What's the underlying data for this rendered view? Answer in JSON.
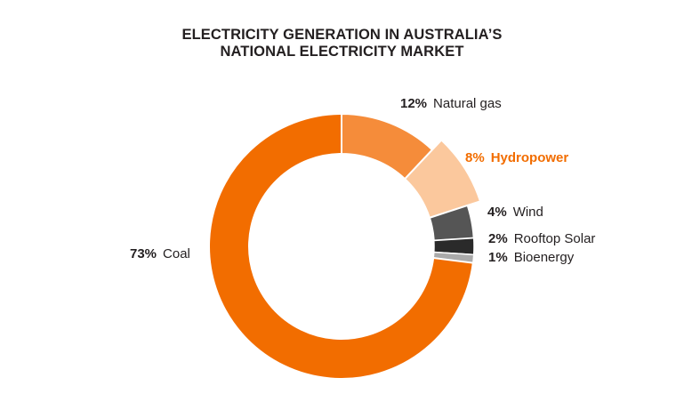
{
  "chart_data": {
    "type": "pie",
    "donut": true,
    "title": [
      "ELECTRICITY GENERATION IN AUSTRALIA’S",
      "NATIONAL ELECTRICITY MARKET"
    ],
    "categories": [
      "Natural gas",
      "Hydropower",
      "Wind",
      "Rooftop Solar",
      "Bioenergy",
      "Coal"
    ],
    "values": [
      12,
      8,
      4,
      2,
      1,
      73
    ],
    "value_labels": [
      "12%",
      "8%",
      "4%",
      "2%",
      "1%",
      "73%"
    ],
    "colors": [
      "#f58c3a",
      "#fbc89d",
      "#555555",
      "#2a2a2a",
      "#aaaaaa",
      "#f26d00"
    ],
    "label_colors": [
      "#231f20",
      "#f26d00",
      "#231f20",
      "#231f20",
      "#231f20",
      "#231f20"
    ],
    "highlighted": "Hydropower",
    "legend": "none"
  }
}
